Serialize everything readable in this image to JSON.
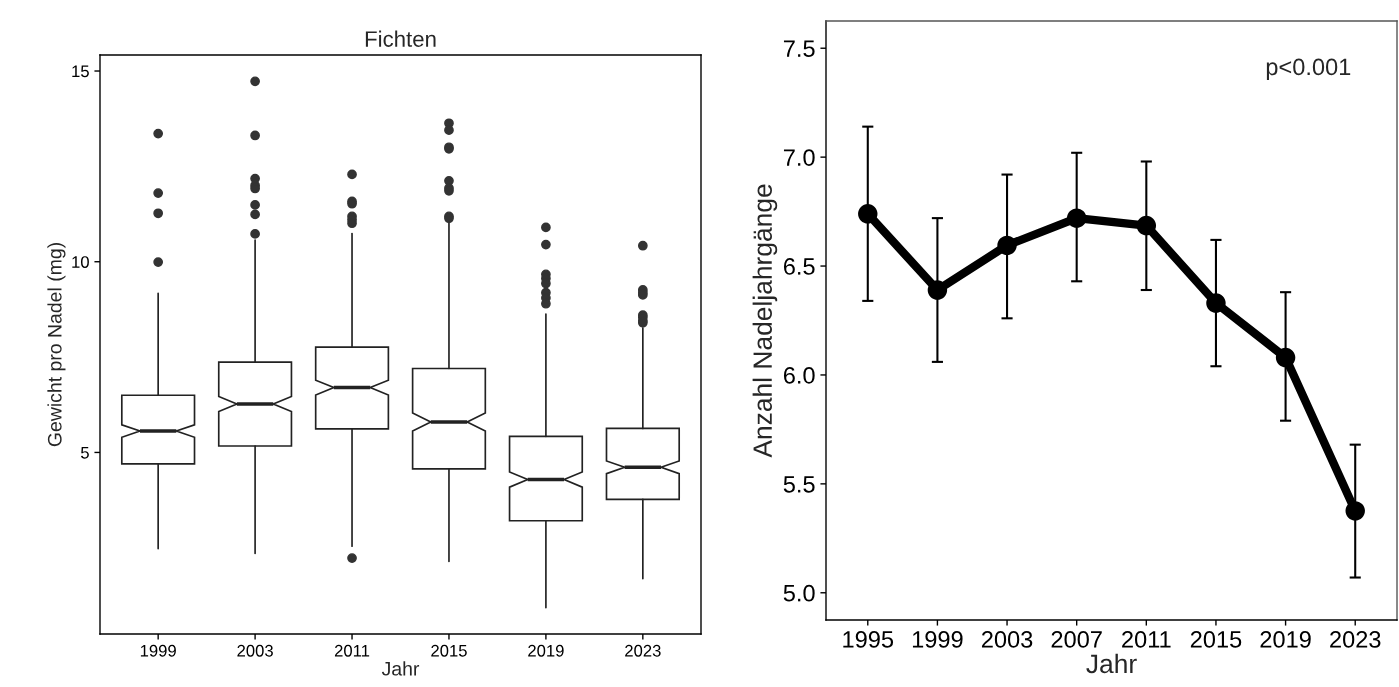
{
  "chart_data": [
    {
      "type": "box",
      "title": "Fichten",
      "xlabel": "Jahr",
      "ylabel": "Gewicht pro Nadel (mg)",
      "categories": [
        "1999",
        "2003",
        "2011",
        "2015",
        "2019",
        "2023"
      ],
      "boxes": [
        {
          "low": 2.48,
          "q1": 4.7,
          "median": 5.56,
          "q3": 6.5,
          "high": 9.17,
          "outliers": [
            13.36,
            11.8,
            11.27,
            9.99
          ]
        },
        {
          "low": 2.35,
          "q1": 5.17,
          "median": 6.27,
          "q3": 7.37,
          "high": 10.57,
          "outliers": [
            14.73,
            13.31,
            12.18,
            12.0,
            11.92,
            11.49,
            11.24,
            10.73
          ]
        },
        {
          "low": 2.54,
          "q1": 5.62,
          "median": 6.7,
          "q3": 7.76,
          "high": 10.74,
          "outliers": [
            12.29,
            11.58,
            11.52,
            11.19,
            11.1,
            11.01,
            2.23
          ]
        },
        {
          "low": 2.14,
          "q1": 4.57,
          "median": 5.8,
          "q3": 7.2,
          "high": 11.15,
          "outliers": [
            13.63,
            13.45,
            13.0,
            12.96,
            12.12,
            11.93,
            11.86,
            11.19,
            11.14
          ]
        },
        {
          "low": 0.93,
          "q1": 3.21,
          "median": 4.29,
          "q3": 5.42,
          "high": 8.63,
          "outliers": [
            10.9,
            10.45,
            9.67,
            9.56,
            9.43,
            9.19,
            9.05,
            8.9
          ]
        },
        {
          "low": 1.69,
          "q1": 3.77,
          "median": 4.61,
          "q3": 5.63,
          "high": 8.27,
          "outliers": [
            10.42,
            9.26,
            9.19,
            9.13,
            8.6,
            8.54,
            8.45,
            8.4
          ]
        }
      ],
      "ylim": [
        0.24,
        15.42
      ],
      "yticks": [
        5,
        10,
        15
      ],
      "grid": false
    },
    {
      "type": "line",
      "xlabel": "Jahr",
      "ylabel": "Anzahl Nadeljahrgänge",
      "x": [
        1995,
        1999,
        2003,
        2007,
        2011,
        2015,
        2019,
        2023
      ],
      "series": [
        {
          "color": "#000000",
          "values": [
            6.74,
            6.39,
            6.595,
            6.72,
            6.686,
            6.33,
            6.08,
            5.376
          ],
          "errors": [
            [
              6.34,
              7.14
            ],
            [
              6.06,
              6.72
            ],
            [
              6.26,
              6.92
            ],
            [
              6.43,
              7.02
            ],
            [
              6.39,
              6.98
            ],
            [
              6.04,
              6.62
            ],
            [
              5.79,
              6.38
            ],
            [
              5.07,
              5.68
            ]
          ]
        }
      ],
      "marker": "circle",
      "line_style": "solid",
      "xlim": [
        1992.6,
        2025.4
      ],
      "xticks": [
        1995,
        1999,
        2003,
        2007,
        2011,
        2015,
        2019,
        2023
      ],
      "ylim": [
        4.875,
        7.625
      ],
      "yticks": [
        {
          "value": 5.0,
          "label": "5.0"
        },
        {
          "value": 5.5,
          "label": "5.5"
        },
        {
          "value": 6.0,
          "label": "6.0"
        },
        {
          "value": 6.5,
          "label": "6.5"
        },
        {
          "value": 7.0,
          "label": "7.0"
        },
        {
          "value": 7.5,
          "label": "7.5"
        }
      ],
      "annotations": [
        "p<0.001"
      ],
      "grid": false
    }
  ]
}
